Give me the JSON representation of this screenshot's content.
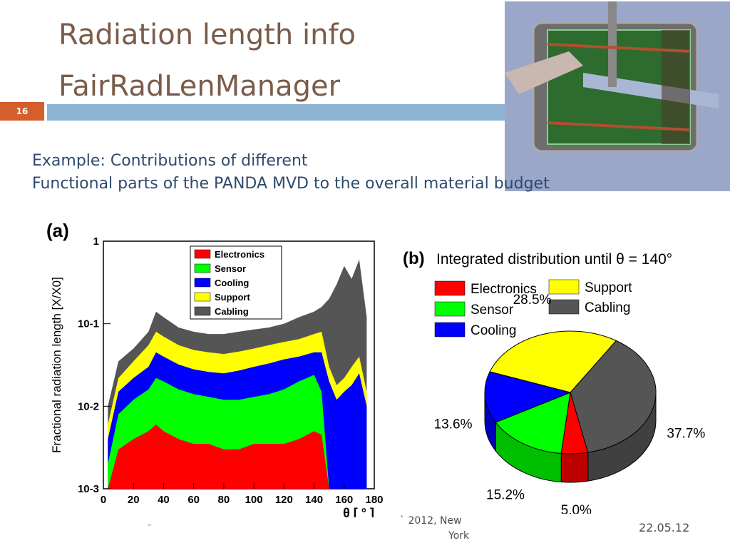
{
  "slide": {
    "title_line1": "Radiation length info",
    "title_line2": "FairRadLenManager",
    "number": "16",
    "subtitle_line1": "Example: Contributions of different",
    "subtitle_line2": "Functional parts of the PANDA MVD to the overall material budget",
    "footer_left": "-",
    "footer_mid1": "` 2012, New",
    "footer_mid2": "York",
    "footer_date": "22.05.12"
  },
  "colors": {
    "electronics": "#ff0000",
    "sensor": "#00ff00",
    "cooling": "#0000ff",
    "support": "#ffff00",
    "cabling": "#555555",
    "title": "#7a5c4a",
    "subtitle": "#2e4a6e",
    "rule": "#8fb4d3",
    "badge": "#d45e2c"
  },
  "photo": {
    "icon": "detector-cutaway-render"
  },
  "chart_data": [
    {
      "type": "area",
      "panel_label": "(a)",
      "xlabel": "θ [ ° ]",
      "ylabel": "Fractional radiation length [X/X0]",
      "scale_y": "log",
      "xlim": [
        0,
        180
      ],
      "ylim": [
        0.001,
        1
      ],
      "xticks": [
        0,
        20,
        40,
        60,
        80,
        100,
        120,
        140,
        160,
        180
      ],
      "yticks": [
        {
          "value": 1,
          "label": "1"
        },
        {
          "value": 0.1,
          "label": "10-1"
        },
        {
          "value": 0.01,
          "label": "10-2"
        },
        {
          "value": 0.001,
          "label": "10-3"
        }
      ],
      "legend_position": "top-center",
      "stacked": true,
      "x": [
        3,
        10,
        20,
        30,
        35,
        40,
        50,
        60,
        70,
        80,
        90,
        100,
        110,
        120,
        130,
        140,
        145,
        150,
        155,
        160,
        165,
        170,
        175
      ],
      "series": [
        {
          "name": "Electronics",
          "cumulative": [
            0.001,
            0.003,
            0.004,
            0.005,
            0.006,
            0.005,
            0.004,
            0.0035,
            0.0035,
            0.003,
            0.003,
            0.0035,
            0.0035,
            0.0035,
            0.004,
            0.005,
            0.0045,
            0.001,
            0.001,
            0.001,
            0.001,
            0.001,
            0.001
          ]
        },
        {
          "name": "Sensor",
          "cumulative": [
            0.002,
            0.008,
            0.012,
            0.016,
            0.022,
            0.02,
            0.016,
            0.014,
            0.013,
            0.012,
            0.012,
            0.013,
            0.014,
            0.016,
            0.02,
            0.024,
            0.015,
            0.001,
            0.001,
            0.001,
            0.001,
            0.001,
            0.001
          ]
        },
        {
          "name": "Cooling",
          "cumulative": [
            0.004,
            0.015,
            0.022,
            0.03,
            0.045,
            0.04,
            0.032,
            0.028,
            0.026,
            0.025,
            0.027,
            0.03,
            0.033,
            0.037,
            0.04,
            0.045,
            0.045,
            0.02,
            0.012,
            0.015,
            0.018,
            0.025,
            0.01
          ]
        },
        {
          "name": "Support",
          "cumulative": [
            0.006,
            0.022,
            0.035,
            0.055,
            0.08,
            0.07,
            0.055,
            0.048,
            0.045,
            0.043,
            0.046,
            0.05,
            0.055,
            0.06,
            0.065,
            0.075,
            0.08,
            0.03,
            0.018,
            0.022,
            0.03,
            0.04,
            0.015
          ]
        },
        {
          "name": "Cabling",
          "cumulative": [
            0.01,
            0.035,
            0.05,
            0.08,
            0.14,
            0.12,
            0.09,
            0.08,
            0.075,
            0.075,
            0.08,
            0.085,
            0.09,
            0.1,
            0.12,
            0.14,
            0.16,
            0.2,
            0.3,
            0.5,
            0.35,
            0.6,
            0.12
          ]
        }
      ]
    },
    {
      "type": "pie",
      "panel_label": "(b)",
      "title": "Integrated distribution until θ = 140°",
      "legend_position": "top",
      "slices": [
        {
          "name": "Cabling",
          "value": 37.7,
          "label": "37.7%"
        },
        {
          "name": "Electronics",
          "value": 5.0,
          "label": "5.0%"
        },
        {
          "name": "Sensor",
          "value": 15.2,
          "label": "15.2%"
        },
        {
          "name": "Cooling",
          "value": 13.6,
          "label": "13.6%"
        },
        {
          "name": "Support",
          "value": 28.5,
          "label": "28.5%"
        }
      ]
    }
  ]
}
